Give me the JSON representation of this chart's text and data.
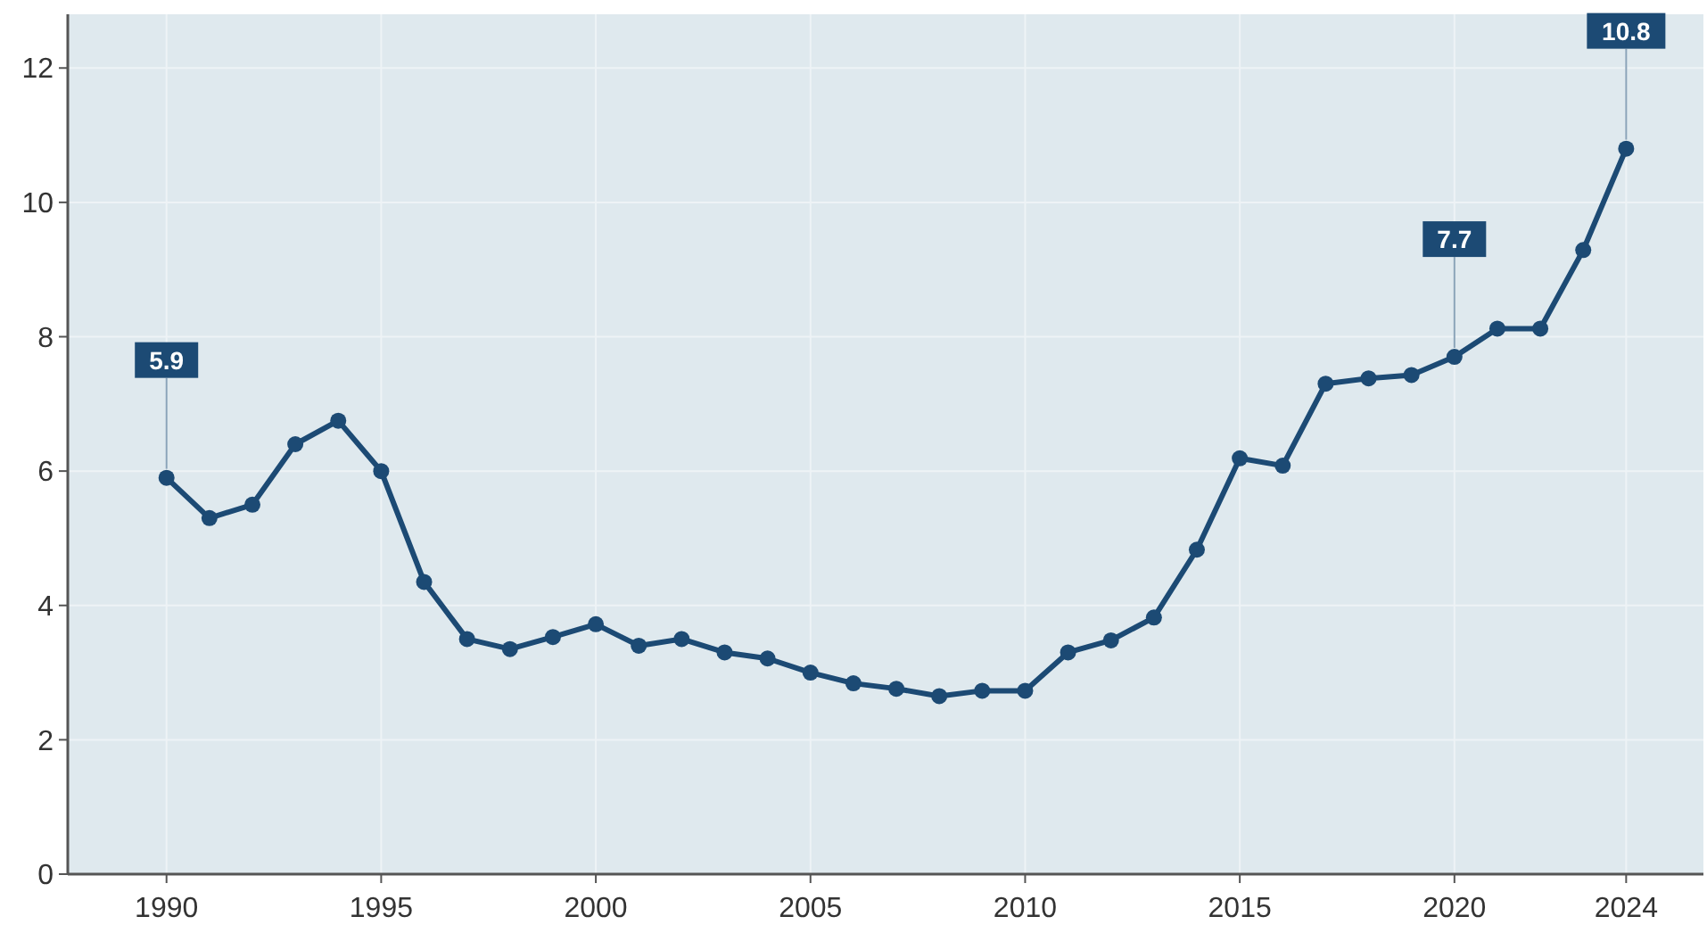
{
  "chart_data": {
    "type": "line",
    "x": [
      1990,
      1991,
      1992,
      1993,
      1994,
      1995,
      1996,
      1997,
      1998,
      1999,
      2000,
      2001,
      2002,
      2003,
      2004,
      2005,
      2006,
      2007,
      2008,
      2009,
      2010,
      2011,
      2012,
      2013,
      2014,
      2015,
      2016,
      2017,
      2018,
      2019,
      2020,
      2021,
      2022,
      2023,
      2024
    ],
    "series": [
      {
        "color": "#1c4a74",
        "values": [
          5.9,
          5.3,
          5.5,
          6.4,
          6.75,
          6.0,
          4.35,
          3.5,
          3.35,
          3.53,
          3.72,
          3.4,
          3.5,
          3.3,
          3.21,
          3.0,
          2.84,
          2.76,
          2.65,
          2.73,
          2.73,
          3.3,
          3.48,
          3.82,
          4.83,
          6.19,
          6.08,
          7.3,
          7.38,
          7.43,
          7.7,
          8.12,
          8.12,
          9.29,
          10.8
        ],
        "value_labels": [
          "5.9",
          null,
          null,
          null,
          null,
          null,
          null,
          null,
          null,
          null,
          null,
          null,
          null,
          null,
          null,
          null,
          null,
          null,
          null,
          null,
          null,
          null,
          null,
          null,
          null,
          null,
          null,
          null,
          null,
          null,
          "7.7",
          null,
          null,
          null,
          "10.8"
        ]
      }
    ],
    "xlim": [
      1987.7,
      2025.8
    ],
    "ylim": [
      0,
      12.8
    ],
    "xticks": [
      1990,
      1995,
      2000,
      2005,
      2010,
      2015,
      2020,
      2024
    ],
    "yticks": [
      0,
      2,
      4,
      6,
      8,
      10,
      12
    ],
    "grid": true,
    "marker": "circle",
    "line_style": "solid"
  }
}
